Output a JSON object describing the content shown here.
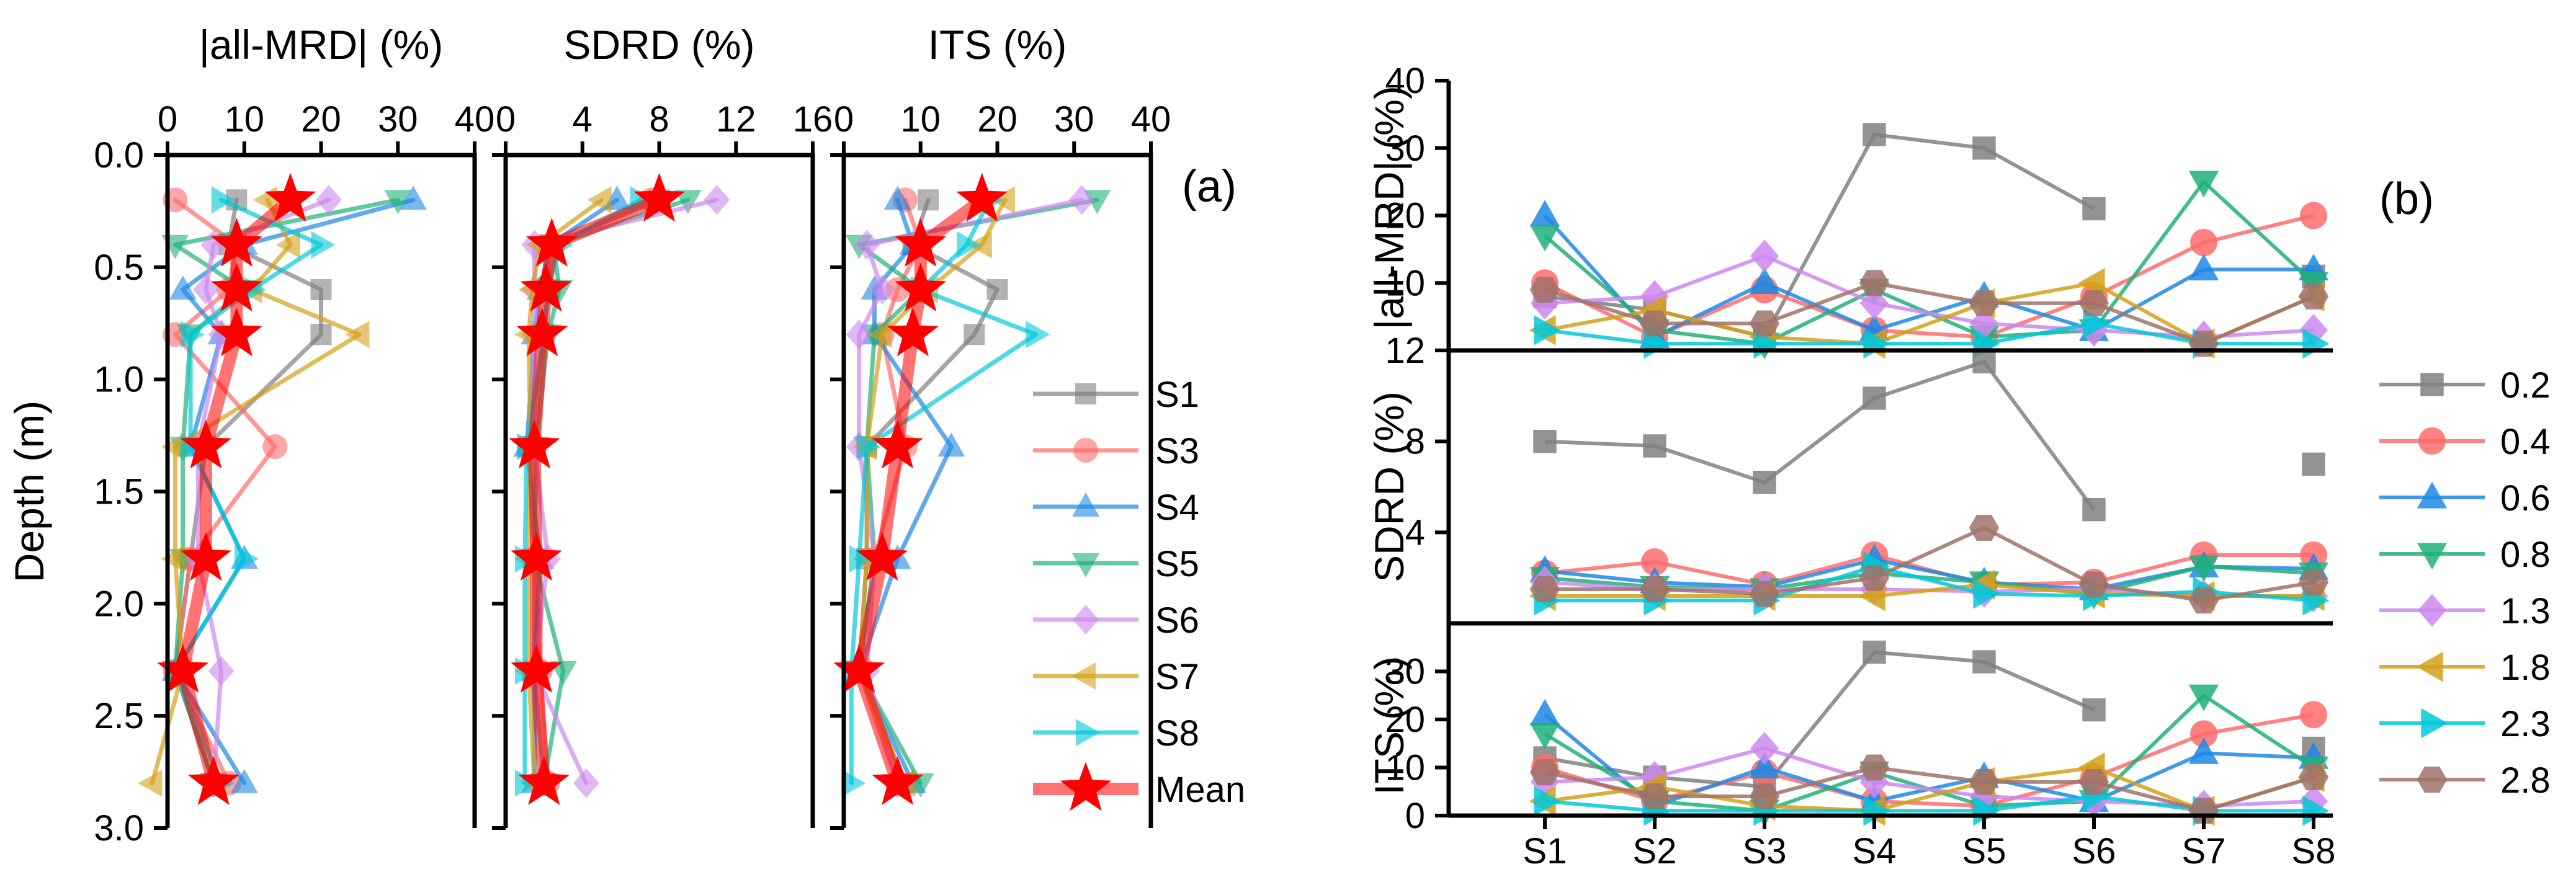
{
  "chart_data": [
    {
      "panel": "(a)",
      "type": "line",
      "shared_y": {
        "label": "Depth (m)",
        "range": [
          0.0,
          3.0
        ],
        "inverted": true,
        "ticks": [
          "0.0",
          "0.5",
          "1.0",
          "1.5",
          "2.0",
          "2.5",
          "3.0"
        ],
        "depths": [
          0.2,
          0.4,
          0.6,
          0.8,
          1.3,
          1.8,
          2.3,
          2.8
        ]
      },
      "legend": [
        "S1",
        "S3",
        "S4",
        "S5",
        "S6",
        "S7",
        "S8",
        "Mean"
      ],
      "subplots": [
        {
          "title": "|all-MRD| (%)",
          "xlim": [
            0,
            40
          ],
          "xticks": [
            "0",
            "10",
            "20",
            "30",
            "40"
          ],
          "series": [
            {
              "name": "S1",
              "values": [
                9,
                8,
                20,
                20,
                5,
                3,
                1,
                6
              ]
            },
            {
              "name": "S3",
              "values": [
                1,
                9,
                8,
                1,
                14,
                3,
                1,
                8
              ]
            },
            {
              "name": "S4",
              "values": [
                32,
                10,
                2,
                7,
                3,
                10,
                1,
                10
              ]
            },
            {
              "name": "S5",
              "values": [
                30,
                1,
                10,
                3,
                2,
                2,
                1,
                6
              ]
            },
            {
              "name": "S6",
              "values": [
                21,
                6,
                5,
                7,
                4,
                4,
                7,
                6
              ]
            },
            {
              "name": "S7",
              "values": [
                13,
                16,
                11,
                25,
                1,
                1,
                2,
                -2
              ]
            },
            {
              "name": "S8",
              "values": [
                7,
                20,
                11,
                3,
                3,
                10,
                1,
                7
              ]
            },
            {
              "name": "Mean",
              "values": [
                16,
                9,
                9,
                9,
                5,
                5,
                2,
                6
              ]
            }
          ]
        },
        {
          "title": "SDRD (%)",
          "xlim": [
            0,
            16
          ],
          "xticks": [
            "0",
            "4",
            "8",
            "12",
            "16"
          ],
          "series": [
            {
              "name": "S1",
              "values": [
                8,
                2.3,
                2.2,
                2,
                1.2,
                1.5,
                1.5,
                2
              ]
            },
            {
              "name": "S3",
              "values": [
                7.6,
                2.5,
                2.2,
                2,
                1.5,
                1.5,
                1.8,
                2.2
              ]
            },
            {
              "name": "S4",
              "values": [
                5.8,
                2.3,
                1.8,
                1.5,
                1.1,
                1.8,
                1.5,
                1.5
              ]
            },
            {
              "name": "S5",
              "values": [
                9.5,
                2.5,
                2.8,
                2.2,
                1.6,
                1.5,
                3,
                2
              ]
            },
            {
              "name": "S6",
              "values": [
                11,
                1.5,
                1.5,
                1.5,
                1.5,
                2.2,
                1.5,
                4.2
              ]
            },
            {
              "name": "S7",
              "values": [
                5,
                1.8,
                1.4,
                1.2,
                1.3,
                1.2,
                1.2,
                1.5
              ]
            },
            {
              "name": "S8",
              "values": [
                7,
                2.8,
                2.2,
                2,
                1.1,
                1,
                1,
                1
              ]
            },
            {
              "name": "Mean",
              "values": [
                8,
                2.4,
                2.1,
                1.9,
                1.5,
                1.6,
                1.6,
                2
              ]
            }
          ]
        },
        {
          "title": "ITS (%)",
          "xlim": [
            0,
            40
          ],
          "xticks": [
            "0",
            "10",
            "20",
            "30",
            "40"
          ],
          "series": [
            {
              "name": "S1",
              "values": [
                11,
                9,
                20,
                17,
                3,
                3,
                2,
                8
              ]
            },
            {
              "name": "S3",
              "values": [
                8,
                10,
                7,
                5,
                8,
                4,
                2,
                7
              ]
            },
            {
              "name": "S4",
              "values": [
                7,
                9,
                4,
                4,
                14,
                7,
                2,
                9
              ]
            },
            {
              "name": "S5",
              "values": [
                33,
                2,
                10,
                4,
                3,
                4,
                2,
                10
              ]
            },
            {
              "name": "S6",
              "values": [
                31,
                3,
                5,
                2,
                2,
                4,
                3,
                7
              ]
            },
            {
              "name": "S7",
              "values": [
                21,
                18,
                11,
                5,
                3,
                3,
                2,
                8
              ]
            },
            {
              "name": "S8",
              "values": [
                19,
                16,
                10,
                25,
                3,
                2,
                1,
                1
              ]
            },
            {
              "name": "Mean",
              "values": [
                18,
                10,
                10,
                9,
                7,
                5,
                2,
                7
              ]
            }
          ]
        }
      ]
    },
    {
      "panel": "(b)",
      "type": "line",
      "categories": [
        "S1",
        "S2",
        "S3",
        "S4",
        "S5",
        "S6",
        "S7",
        "S8"
      ],
      "legend": [
        "0.2",
        "0.4",
        "0.6",
        "0.8",
        "1.3",
        "1.8",
        "2.3",
        "2.8"
      ],
      "subplots": [
        {
          "ylabel": "|all-MRD| (%)",
          "ylim": [
            0,
            40
          ],
          "yticks": [
            "10",
            "20",
            "30",
            "40"
          ],
          "series": [
            {
              "name": "0.2",
              "values": [
                8,
                6,
                2,
                32,
                30,
                21,
                null,
                11
              ]
            },
            {
              "name": "0.4",
              "values": [
                10,
                2,
                9,
                3,
                2,
                8,
                16,
                20
              ]
            },
            {
              "name": "0.6",
              "values": [
                20,
                2,
                10,
                3,
                8,
                3,
                12,
                12
              ]
            },
            {
              "name": "0.8",
              "values": [
                17,
                3,
                1,
                9,
                2,
                3,
                25,
                10
              ]
            },
            {
              "name": "1.3",
              "values": [
                7,
                8,
                14,
                7,
                4,
                3,
                2,
                3
              ]
            },
            {
              "name": "1.8",
              "values": [
                3,
                6,
                2,
                1,
                7,
                10,
                1,
                8
              ]
            },
            {
              "name": "2.3",
              "values": [
                3,
                1,
                1,
                1,
                1,
                4,
                1,
                1
              ]
            },
            {
              "name": "2.8",
              "values": [
                9,
                4,
                4,
                10,
                7,
                7,
                1,
                8
              ]
            }
          ]
        },
        {
          "ylabel": "SDRD (%)",
          "ylim": [
            0,
            12
          ],
          "yticks": [
            "4",
            "8",
            "12"
          ],
          "series": [
            {
              "name": "0.2",
              "values": [
                8,
                7.8,
                6.2,
                9.9,
                11.5,
                5,
                null,
                7
              ]
            },
            {
              "name": "0.4",
              "values": [
                2.2,
                2.7,
                1.7,
                3,
                1.7,
                1.8,
                3,
                3
              ]
            },
            {
              "name": "0.6",
              "values": [
                2.3,
                1.8,
                1.6,
                2.8,
                1.8,
                1.5,
                2.5,
                2.4
              ]
            },
            {
              "name": "0.8",
              "values": [
                2,
                1.6,
                1.5,
                2.2,
                1.8,
                1.3,
                2.5,
                2.2
              ]
            },
            {
              "name": "1.3",
              "values": [
                1.8,
                1.5,
                1.5,
                1.5,
                1.4,
                1.5,
                1.2,
                1.2
              ]
            },
            {
              "name": "1.8",
              "values": [
                1.2,
                1.2,
                1.2,
                1.2,
                1.7,
                1.3,
                1.2,
                1.2
              ]
            },
            {
              "name": "2.3",
              "values": [
                1,
                1,
                1,
                2.5,
                1.3,
                1.2,
                1.4,
                1
              ]
            },
            {
              "name": "2.8",
              "values": [
                1.5,
                1.5,
                1.3,
                2,
                4.2,
                1.7,
                1,
                1.8
              ]
            }
          ]
        },
        {
          "ylabel": "ITS (%)",
          "ylim": [
            0,
            40
          ],
          "yticks": [
            "0",
            "10",
            "20",
            "30"
          ],
          "series": [
            {
              "name": "0.2",
              "values": [
                12,
                8,
                6,
                34,
                32,
                22,
                null,
                14
              ]
            },
            {
              "name": "0.4",
              "values": [
                10,
                3,
                9,
                3,
                2,
                8,
                17,
                21
              ]
            },
            {
              "name": "0.6",
              "values": [
                21,
                2,
                10,
                3,
                8,
                3,
                13,
                12
              ]
            },
            {
              "name": "0.8",
              "values": [
                17,
                3,
                1,
                9,
                2,
                3,
                25,
                10
              ]
            },
            {
              "name": "1.3",
              "values": [
                7,
                8,
                14,
                7,
                4,
                3,
                2,
                3
              ]
            },
            {
              "name": "1.8",
              "values": [
                3,
                6,
                2,
                1,
                7,
                10,
                1,
                8
              ]
            },
            {
              "name": "2.3",
              "values": [
                3,
                1,
                1,
                1,
                1,
                4,
                1,
                1
              ]
            },
            {
              "name": "2.8",
              "values": [
                9,
                4,
                4,
                10,
                7,
                7,
                1,
                8
              ]
            }
          ]
        }
      ]
    }
  ],
  "colors": {
    "S1": "#808080",
    "S3": "#ff6b6b",
    "S4": "#1e88e5",
    "S5": "#20b07a",
    "S6": "#cc88ee",
    "S7": "#d4a017",
    "S8": "#00c8d8",
    "Mean": "#ff0000",
    "0.2": "#808080",
    "0.4": "#ff6b6b",
    "0.6": "#1e88e5",
    "0.8": "#20b07a",
    "1.3": "#cc88ee",
    "1.8": "#d4a017",
    "2.3": "#00c8d8",
    "2.8": "#a0726a"
  },
  "markers": {
    "S1": "square",
    "S3": "circle",
    "S4": "triangle-up",
    "S5": "triangle-down",
    "S6": "diamond",
    "S7": "triangle-left",
    "S8": "triangle-right",
    "Mean": "star",
    "0.2": "square",
    "0.4": "circle",
    "0.6": "triangle-up",
    "0.8": "triangle-down",
    "1.3": "diamond",
    "1.8": "triangle-left",
    "2.3": "triangle-right",
    "2.8": "hexagon"
  }
}
